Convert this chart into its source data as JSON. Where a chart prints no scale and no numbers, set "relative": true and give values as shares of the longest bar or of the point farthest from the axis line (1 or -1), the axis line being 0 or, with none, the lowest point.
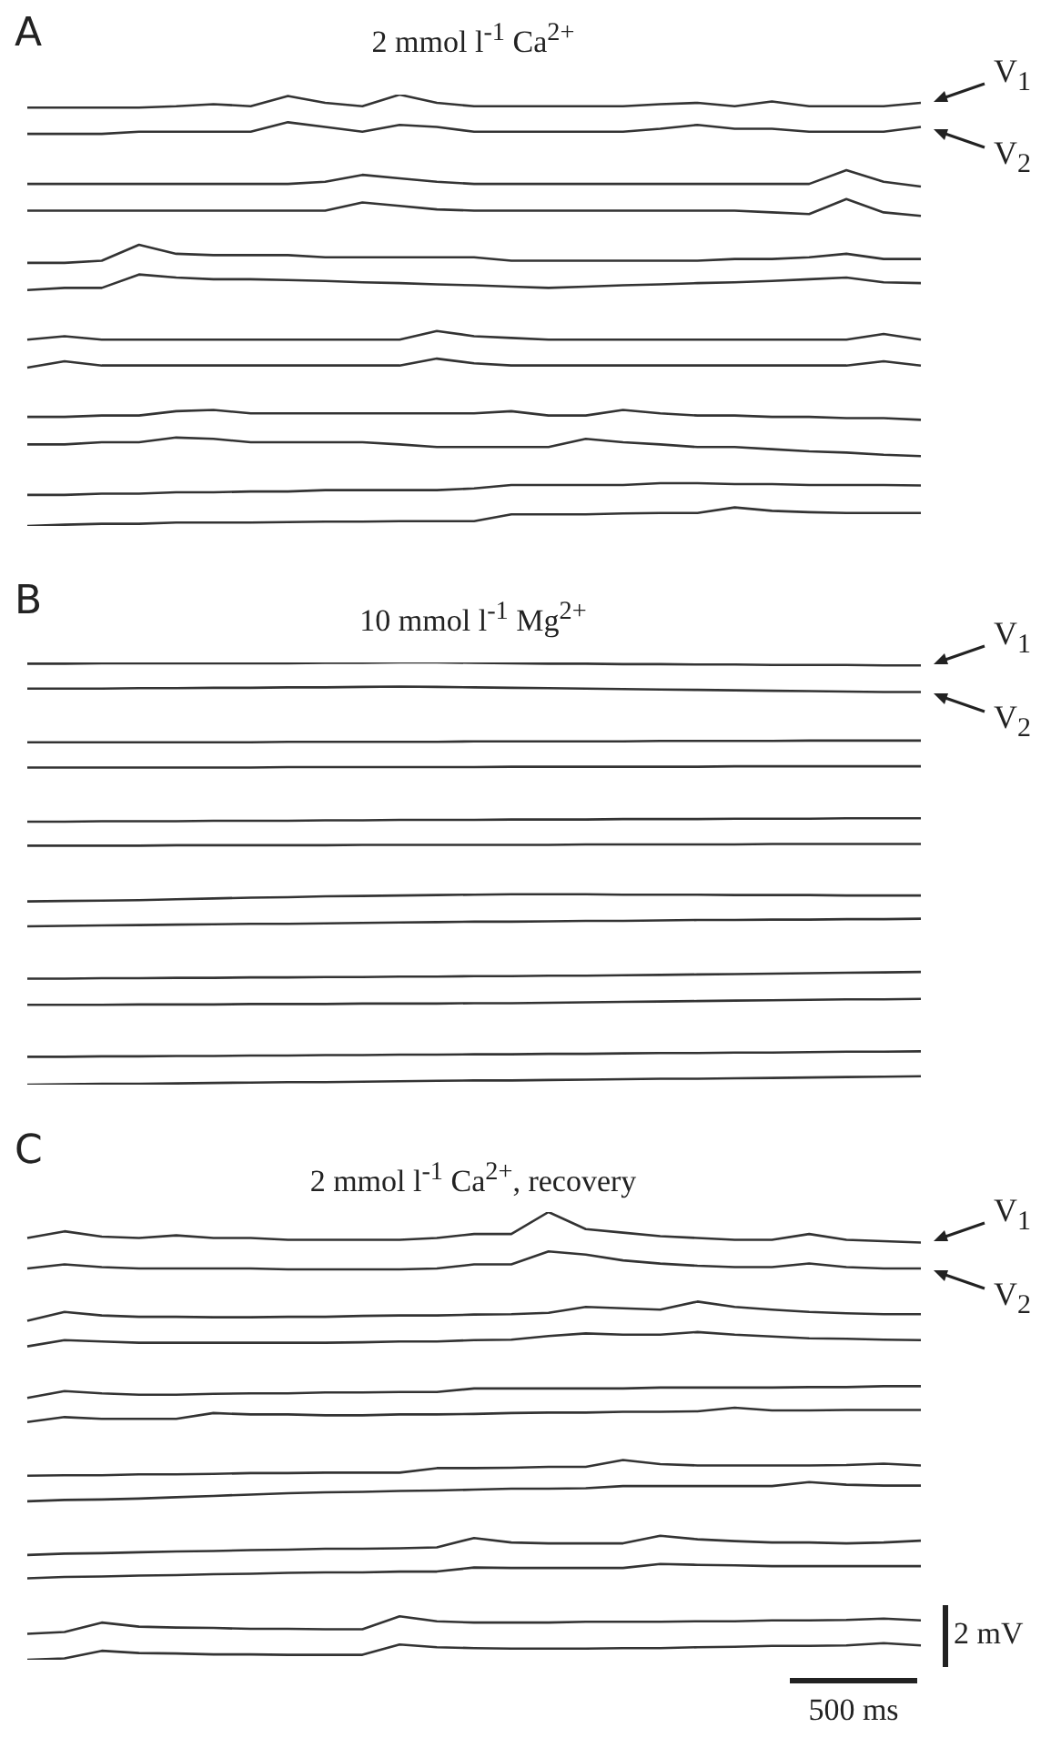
{
  "chart_data": [
    {
      "type": "line",
      "title": "2 mmol l$^{-1}$ Ca$^{2+}$",
      "relative": true,
      "legend": false,
      "marker": "none",
      "tick_labels": false,
      "annotations": [
        "A"
      ],
      "categories": [
        null,
        null,
        null,
        null,
        null,
        null,
        null,
        null,
        null,
        null,
        null,
        null,
        null,
        null,
        null,
        null,
        null,
        null,
        null,
        null,
        null,
        null,
        null,
        null,
        null
      ],
      "series": [
        {
          "name": "V$_{1}$",
          "color": "#333333",
          "values": [
            0.97,
            0.97,
            0.97,
            0.97,
            0.973,
            0.978,
            0.973,
            0.997,
            0.981,
            0.973,
            1.0,
            0.981,
            0.973,
            0.973,
            0.973,
            0.973,
            0.973,
            0.978,
            0.981,
            0.973,
            0.984,
            0.973,
            0.973,
            0.973,
            0.981
          ]
        },
        {
          "name": "V$_{2}$",
          "color": "#333333",
          "values": [
            0.909,
            0.909,
            0.909,
            0.914,
            0.914,
            0.914,
            0.914,
            0.936,
            0.925,
            0.914,
            0.93,
            0.925,
            0.914,
            0.914,
            0.914,
            0.914,
            0.914,
            0.921,
            0.93,
            0.921,
            0.921,
            0.914,
            0.914,
            0.914,
            0.925
          ]
        },
        {
          "color": "#333333",
          "values": [
            0.793,
            0.793,
            0.793,
            0.793,
            0.793,
            0.793,
            0.793,
            0.793,
            0.798,
            0.814,
            0.806,
            0.798,
            0.793,
            0.793,
            0.793,
            0.793,
            0.793,
            0.793,
            0.793,
            0.793,
            0.793,
            0.793,
            0.825,
            0.798,
            0.787
          ]
        },
        {
          "color": "#333333",
          "values": [
            0.731,
            0.731,
            0.731,
            0.731,
            0.731,
            0.731,
            0.731,
            0.731,
            0.731,
            0.75,
            0.742,
            0.734,
            0.731,
            0.731,
            0.731,
            0.731,
            0.731,
            0.731,
            0.731,
            0.731,
            0.727,
            0.723,
            0.758,
            0.727,
            0.719
          ]
        },
        {
          "color": "#333333",
          "values": [
            0.61,
            0.61,
            0.615,
            0.652,
            0.631,
            0.628,
            0.628,
            0.628,
            0.623,
            0.623,
            0.623,
            0.623,
            0.623,
            0.615,
            0.615,
            0.615,
            0.615,
            0.615,
            0.615,
            0.619,
            0.619,
            0.623,
            0.631,
            0.619,
            0.619
          ]
        },
        {
          "color": "#333333",
          "values": [
            0.547,
            0.552,
            0.552,
            0.583,
            0.576,
            0.572,
            0.572,
            0.57,
            0.568,
            0.565,
            0.563,
            0.56,
            0.558,
            0.555,
            0.552,
            0.555,
            0.558,
            0.56,
            0.563,
            0.565,
            0.568,
            0.572,
            0.576,
            0.565,
            0.563
          ]
        },
        {
          "color": "#333333",
          "values": [
            0.432,
            0.44,
            0.432,
            0.432,
            0.432,
            0.432,
            0.432,
            0.432,
            0.432,
            0.432,
            0.432,
            0.452,
            0.44,
            0.436,
            0.432,
            0.432,
            0.432,
            0.432,
            0.432,
            0.432,
            0.432,
            0.432,
            0.432,
            0.445,
            0.432
          ]
        },
        {
          "color": "#333333",
          "values": [
            0.367,
            0.382,
            0.372,
            0.372,
            0.372,
            0.372,
            0.372,
            0.372,
            0.372,
            0.372,
            0.372,
            0.388,
            0.377,
            0.372,
            0.372,
            0.372,
            0.372,
            0.372,
            0.372,
            0.372,
            0.372,
            0.372,
            0.372,
            0.382,
            0.372
          ]
        },
        {
          "color": "#333333",
          "values": [
            0.253,
            0.253,
            0.256,
            0.256,
            0.266,
            0.269,
            0.261,
            0.261,
            0.261,
            0.261,
            0.261,
            0.261,
            0.261,
            0.266,
            0.256,
            0.256,
            0.269,
            0.261,
            0.256,
            0.256,
            0.253,
            0.253,
            0.25,
            0.25,
            0.246
          ]
        },
        {
          "color": "#333333",
          "values": [
            0.189,
            0.189,
            0.194,
            0.194,
            0.205,
            0.202,
            0.194,
            0.194,
            0.194,
            0.194,
            0.189,
            0.183,
            0.183,
            0.183,
            0.183,
            0.202,
            0.194,
            0.189,
            0.183,
            0.183,
            0.178,
            0.173,
            0.17,
            0.165,
            0.162
          ]
        },
        {
          "color": "#333333",
          "values": [
            0.072,
            0.072,
            0.075,
            0.075,
            0.078,
            0.078,
            0.08,
            0.08,
            0.083,
            0.083,
            0.083,
            0.083,
            0.087,
            0.095,
            0.095,
            0.095,
            0.095,
            0.099,
            0.099,
            0.097,
            0.097,
            0.095,
            0.095,
            0.095,
            0.094
          ]
        },
        {
          "color": "#333333",
          "values": [
            0,
            0.003,
            0.005,
            0.005,
            0.008,
            0.008,
            0.008,
            0.009,
            0.01,
            0.01,
            0.011,
            0.011,
            0.011,
            0.027,
            0.027,
            0.027,
            0.029,
            0.03,
            0.03,
            0.043,
            0.035,
            0.032,
            0.03,
            0.03,
            0.03
          ]
        }
      ]
    },
    {
      "type": "line",
      "title": "10 mmol l$^{-1}$ Mg$^{2+}$",
      "relative": true,
      "legend": false,
      "marker": "none",
      "tick_labels": false,
      "annotations": [
        "B"
      ],
      "categories": [
        null,
        null,
        null,
        null,
        null,
        null,
        null,
        null,
        null,
        null,
        null,
        null,
        null,
        null,
        null,
        null,
        null,
        null,
        null,
        null,
        null,
        null,
        null,
        null,
        null
      ],
      "series": [
        {
          "name": "V$_{1}$",
          "color": "#333333",
          "values": [
            0.997,
            0.997,
            0.998,
            0.998,
            0.998,
            0.998,
            0.998,
            0.998,
            0.999,
            0.999,
            1,
            1,
            0.999,
            0.998,
            0.997,
            0.997,
            0.996,
            0.996,
            0.995,
            0.995,
            0.994,
            0.994,
            0.994,
            0.993,
            0.993
          ]
        },
        {
          "name": "V$_{2}$",
          "color": "#333333",
          "values": [
            0.938,
            0.938,
            0.938,
            0.939,
            0.939,
            0.94,
            0.94,
            0.941,
            0.941,
            0.942,
            0.943,
            0.942,
            0.941,
            0.94,
            0.939,
            0.938,
            0.937,
            0.936,
            0.935,
            0.934,
            0.933,
            0.932,
            0.931,
            0.93,
            0.93
          ]
        },
        {
          "color": "#333333",
          "values": [
            0.811,
            0.811,
            0.811,
            0.811,
            0.811,
            0.811,
            0.811,
            0.812,
            0.812,
            0.812,
            0.812,
            0.812,
            0.813,
            0.813,
            0.813,
            0.813,
            0.813,
            0.814,
            0.814,
            0.814,
            0.814,
            0.815,
            0.815,
            0.815,
            0.815
          ]
        },
        {
          "color": "#333333",
          "values": [
            0.751,
            0.751,
            0.751,
            0.751,
            0.751,
            0.751,
            0.751,
            0.752,
            0.752,
            0.752,
            0.752,
            0.752,
            0.752,
            0.753,
            0.753,
            0.753,
            0.753,
            0.753,
            0.753,
            0.754,
            0.754,
            0.754,
            0.754,
            0.754,
            0.754
          ]
        },
        {
          "color": "#333333",
          "values": [
            0.623,
            0.623,
            0.624,
            0.624,
            0.624,
            0.625,
            0.625,
            0.625,
            0.626,
            0.626,
            0.627,
            0.627,
            0.627,
            0.628,
            0.628,
            0.628,
            0.629,
            0.629,
            0.629,
            0.63,
            0.63,
            0.63,
            0.631,
            0.631,
            0.631
          ]
        },
        {
          "color": "#333333",
          "values": [
            0.566,
            0.566,
            0.566,
            0.566,
            0.567,
            0.567,
            0.567,
            0.567,
            0.567,
            0.568,
            0.568,
            0.568,
            0.568,
            0.568,
            0.568,
            0.569,
            0.569,
            0.569,
            0.569,
            0.569,
            0.57,
            0.57,
            0.57,
            0.57,
            0.57
          ]
        },
        {
          "color": "#333333",
          "values": [
            0.434,
            0.435,
            0.436,
            0.437,
            0.439,
            0.441,
            0.443,
            0.444,
            0.446,
            0.447,
            0.448,
            0.449,
            0.45,
            0.451,
            0.451,
            0.451,
            0.45,
            0.45,
            0.45,
            0.449,
            0.449,
            0.449,
            0.448,
            0.448,
            0.448
          ]
        },
        {
          "color": "#333333",
          "values": [
            0.375,
            0.376,
            0.377,
            0.378,
            0.379,
            0.38,
            0.381,
            0.381,
            0.382,
            0.383,
            0.384,
            0.385,
            0.386,
            0.386,
            0.387,
            0.388,
            0.388,
            0.389,
            0.39,
            0.39,
            0.391,
            0.391,
            0.392,
            0.392,
            0.393
          ]
        },
        {
          "color": "#333333",
          "values": [
            0.251,
            0.251,
            0.252,
            0.252,
            0.253,
            0.253,
            0.254,
            0.254,
            0.255,
            0.255,
            0.256,
            0.256,
            0.257,
            0.257,
            0.258,
            0.258,
            0.259,
            0.26,
            0.261,
            0.262,
            0.263,
            0.264,
            0.265,
            0.266,
            0.267
          ]
        },
        {
          "color": "#333333",
          "values": [
            0.189,
            0.189,
            0.189,
            0.19,
            0.19,
            0.19,
            0.191,
            0.191,
            0.191,
            0.192,
            0.192,
            0.192,
            0.193,
            0.193,
            0.194,
            0.195,
            0.196,
            0.197,
            0.198,
            0.199,
            0.2,
            0.201,
            0.202,
            0.202,
            0.203
          ]
        },
        {
          "color": "#333333",
          "values": [
            0.066,
            0.066,
            0.067,
            0.067,
            0.068,
            0.068,
            0.069,
            0.069,
            0.07,
            0.07,
            0.071,
            0.071,
            0.072,
            0.072,
            0.073,
            0.073,
            0.074,
            0.075,
            0.075,
            0.076,
            0.076,
            0.077,
            0.078,
            0.078,
            0.079
          ]
        },
        {
          "color": "#333333",
          "values": [
            0,
            0.001,
            0.002,
            0.002,
            0.003,
            0.004,
            0.005,
            0.006,
            0.006,
            0.007,
            0.008,
            0.009,
            0.01,
            0.01,
            0.011,
            0.012,
            0.013,
            0.014,
            0.014,
            0.015,
            0.016,
            0.017,
            0.018,
            0.019,
            0.02
          ]
        }
      ]
    },
    {
      "type": "line",
      "title": "2 mmol l$^{-1}$ Ca$^{2+}$, recovery",
      "relative": true,
      "legend": false,
      "marker": "none",
      "tick_labels": false,
      "annotations": [
        "C",
        "2 mV",
        "500 ms"
      ],
      "categories": [
        null,
        null,
        null,
        null,
        null,
        null,
        null,
        null,
        null,
        null,
        null,
        null,
        null,
        null,
        null,
        null,
        null,
        null,
        null,
        null,
        null,
        null,
        null,
        null,
        null
      ],
      "series": [
        {
          "name": "V$_{1}$",
          "color": "#333333",
          "values": [
            0.942,
            0.957,
            0.945,
            0.942,
            0.948,
            0.942,
            0.942,
            0.938,
            0.938,
            0.938,
            0.938,
            0.942,
            0.951,
            0.951,
            1.0,
            0.962,
            0.954,
            0.946,
            0.942,
            0.938,
            0.938,
            0.951,
            0.938,
            0.935,
            0.932
          ]
        },
        {
          "name": "V$_{2}$",
          "color": "#333333",
          "values": [
            0.874,
            0.883,
            0.877,
            0.874,
            0.874,
            0.874,
            0.874,
            0.872,
            0.872,
            0.872,
            0.872,
            0.874,
            0.883,
            0.883,
            0.912,
            0.905,
            0.892,
            0.885,
            0.88,
            0.877,
            0.877,
            0.885,
            0.877,
            0.874,
            0.874
          ]
        },
        {
          "color": "#333333",
          "values": [
            0.757,
            0.777,
            0.769,
            0.766,
            0.766,
            0.765,
            0.765,
            0.766,
            0.766,
            0.768,
            0.769,
            0.769,
            0.771,
            0.772,
            0.775,
            0.788,
            0.785,
            0.782,
            0.8,
            0.788,
            0.782,
            0.777,
            0.774,
            0.772,
            0.772
          ]
        },
        {
          "color": "#333333",
          "values": [
            0.7,
            0.714,
            0.711,
            0.708,
            0.708,
            0.708,
            0.708,
            0.708,
            0.708,
            0.709,
            0.711,
            0.711,
            0.714,
            0.715,
            0.723,
            0.729,
            0.726,
            0.726,
            0.732,
            0.726,
            0.722,
            0.718,
            0.717,
            0.715,
            0.714
          ]
        },
        {
          "color": "#333333",
          "values": [
            0.585,
            0.6,
            0.595,
            0.592,
            0.592,
            0.594,
            0.595,
            0.595,
            0.597,
            0.597,
            0.598,
            0.598,
            0.606,
            0.606,
            0.606,
            0.606,
            0.606,
            0.608,
            0.608,
            0.608,
            0.608,
            0.609,
            0.609,
            0.611,
            0.611
          ]
        },
        {
          "color": "#333333",
          "values": [
            0.531,
            0.542,
            0.538,
            0.538,
            0.538,
            0.551,
            0.548,
            0.548,
            0.546,
            0.546,
            0.548,
            0.548,
            0.549,
            0.551,
            0.552,
            0.552,
            0.554,
            0.554,
            0.555,
            0.563,
            0.557,
            0.557,
            0.558,
            0.558,
            0.558
          ]
        },
        {
          "color": "#333333",
          "values": [
            0.411,
            0.412,
            0.412,
            0.414,
            0.414,
            0.415,
            0.417,
            0.417,
            0.418,
            0.418,
            0.418,
            0.428,
            0.428,
            0.429,
            0.431,
            0.431,
            0.446,
            0.437,
            0.434,
            0.434,
            0.434,
            0.434,
            0.435,
            0.438,
            0.434
          ]
        },
        {
          "color": "#333333",
          "values": [
            0.354,
            0.357,
            0.358,
            0.36,
            0.363,
            0.366,
            0.369,
            0.372,
            0.374,
            0.375,
            0.377,
            0.378,
            0.38,
            0.382,
            0.382,
            0.383,
            0.388,
            0.388,
            0.388,
            0.388,
            0.388,
            0.397,
            0.391,
            0.389,
            0.389
          ]
        },
        {
          "color": "#333333",
          "values": [
            0.234,
            0.237,
            0.238,
            0.24,
            0.242,
            0.243,
            0.245,
            0.246,
            0.248,
            0.248,
            0.249,
            0.251,
            0.272,
            0.262,
            0.26,
            0.26,
            0.26,
            0.277,
            0.269,
            0.265,
            0.262,
            0.262,
            0.26,
            0.262,
            0.266
          ]
        },
        {
          "color": "#333333",
          "values": [
            0.182,
            0.185,
            0.186,
            0.188,
            0.189,
            0.191,
            0.192,
            0.194,
            0.195,
            0.195,
            0.197,
            0.197,
            0.206,
            0.205,
            0.205,
            0.205,
            0.205,
            0.214,
            0.212,
            0.211,
            0.209,
            0.209,
            0.209,
            0.209,
            0.209
          ]
        },
        {
          "color": "#333333",
          "values": [
            0.058,
            0.062,
            0.083,
            0.074,
            0.072,
            0.071,
            0.069,
            0.069,
            0.068,
            0.068,
            0.097,
            0.086,
            0.083,
            0.083,
            0.083,
            0.085,
            0.085,
            0.085,
            0.086,
            0.086,
            0.088,
            0.088,
            0.089,
            0.092,
            0.088
          ]
        },
        {
          "color": "#333333",
          "values": [
            0,
            0.003,
            0.02,
            0.015,
            0.014,
            0.012,
            0.012,
            0.011,
            0.011,
            0.011,
            0.034,
            0.028,
            0.026,
            0.025,
            0.025,
            0.025,
            0.026,
            0.026,
            0.028,
            0.029,
            0.031,
            0.031,
            0.032,
            0.037,
            0.032
          ]
        }
      ]
    }
  ]
}
